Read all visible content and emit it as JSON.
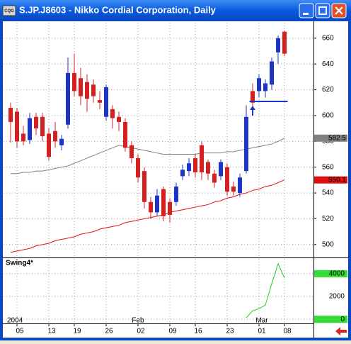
{
  "window": {
    "title": "S.JP.J8603 - Nikko Cordial Corporation, Daily",
    "icon_label": "CQG"
  },
  "chart_data": [
    {
      "type": "candlestick",
      "categories": [
        null,
        "05",
        null,
        null,
        null,
        null,
        "13",
        null,
        null,
        null,
        "19",
        null,
        null,
        null,
        null,
        "26",
        null,
        null,
        null,
        null,
        "02",
        null,
        null,
        null,
        null,
        "09",
        null,
        null,
        null,
        "16",
        null,
        null,
        null,
        null,
        "23",
        null,
        null,
        null,
        null,
        "01",
        null,
        null,
        null,
        "08"
      ],
      "months": [
        "2004",
        "Feb",
        "Mar"
      ],
      "open": [
        606,
        603,
        586,
        581,
        599,
        599,
        586,
        588,
        577,
        593,
        633,
        629,
        626,
        624,
        612,
        599,
        605,
        599,
        595,
        577,
        567,
        557,
        533,
        525,
        543,
        533,
        533,
        553,
        557,
        567,
        577,
        564,
        555,
        553,
        560,
        545,
        540,
        557,
        619,
        619,
        619,
        624,
        649,
        665
      ],
      "high": [
        610,
        606,
        592,
        602,
        602,
        602,
        590,
        595,
        585,
        645,
        648,
        637,
        632,
        628,
        619,
        624,
        608,
        603,
        598,
        580,
        570,
        560,
        537,
        543,
        545,
        536,
        548,
        562,
        567,
        570,
        580,
        566,
        558,
        566,
        563,
        549,
        555,
        608,
        625,
        632,
        628,
        645,
        662,
        666
      ],
      "low": [
        579,
        575,
        577,
        578,
        585,
        580,
        565,
        575,
        573,
        590,
        615,
        608,
        603,
        610,
        605,
        596,
        590,
        588,
        572,
        563,
        548,
        528,
        520,
        522,
        518,
        517,
        530,
        550,
        553,
        552,
        550,
        550,
        544,
        550,
        538,
        538,
        537,
        555,
        605,
        614,
        614,
        620,
        640,
        646
      ],
      "close": [
        595,
        580,
        580,
        598,
        590,
        584,
        568,
        580,
        582,
        633,
        619,
        615,
        613,
        615,
        610,
        622,
        598,
        595,
        575,
        567,
        552,
        533,
        525,
        538,
        522,
        523,
        545,
        558,
        563,
        556,
        556,
        555,
        548,
        564,
        541,
        541,
        552,
        599,
        610,
        629,
        625,
        642,
        660,
        648
      ],
      "up_color": "#1c34c8",
      "down_color": "#d42020",
      "overlays": [
        {
          "color": "#808080",
          "value_label": "582.5",
          "values": [
            555,
            555,
            556,
            556,
            557,
            557,
            558,
            559,
            560,
            561,
            563,
            565,
            567,
            569,
            571,
            573,
            575,
            577,
            576,
            575,
            574,
            573,
            572,
            571,
            570,
            570,
            570,
            570,
            570,
            570,
            571,
            571,
            571,
            571,
            572,
            572,
            573,
            574,
            575,
            576,
            577,
            578,
            580,
            582.5
          ]
        },
        {
          "color": "#e01010",
          "value_label": "550.1",
          "values": [
            494,
            495,
            496,
            497,
            499,
            500,
            501,
            503,
            504,
            505,
            506,
            508,
            509,
            510,
            512,
            513,
            514,
            515,
            517,
            518,
            519,
            520,
            521,
            522,
            523,
            525,
            526,
            527,
            528,
            529,
            530,
            531,
            533,
            534,
            536,
            537,
            539,
            540,
            542,
            543,
            545,
            546,
            548,
            550.1
          ]
        }
      ],
      "support_line": 611,
      "ylim": [
        490,
        672
      ],
      "yticks": [
        500,
        520,
        540,
        560,
        580,
        600,
        620,
        640,
        660
      ],
      "grid": true
    },
    {
      "type": "line",
      "title": "Swing4*",
      "series": [
        {
          "color": "#20d020",
          "values": [
            null,
            null,
            null,
            null,
            null,
            null,
            null,
            null,
            null,
            null,
            null,
            null,
            null,
            null,
            null,
            null,
            null,
            null,
            null,
            null,
            null,
            null,
            null,
            null,
            null,
            null,
            null,
            null,
            null,
            null,
            null,
            null,
            null,
            null,
            null,
            null,
            null,
            125,
            750,
            940,
            1250,
            3125,
            4875,
            3625
          ]
        }
      ],
      "ylim": [
        -300,
        5300
      ],
      "yticks": [
        0,
        2000,
        4000
      ],
      "grid": true
    }
  ]
}
